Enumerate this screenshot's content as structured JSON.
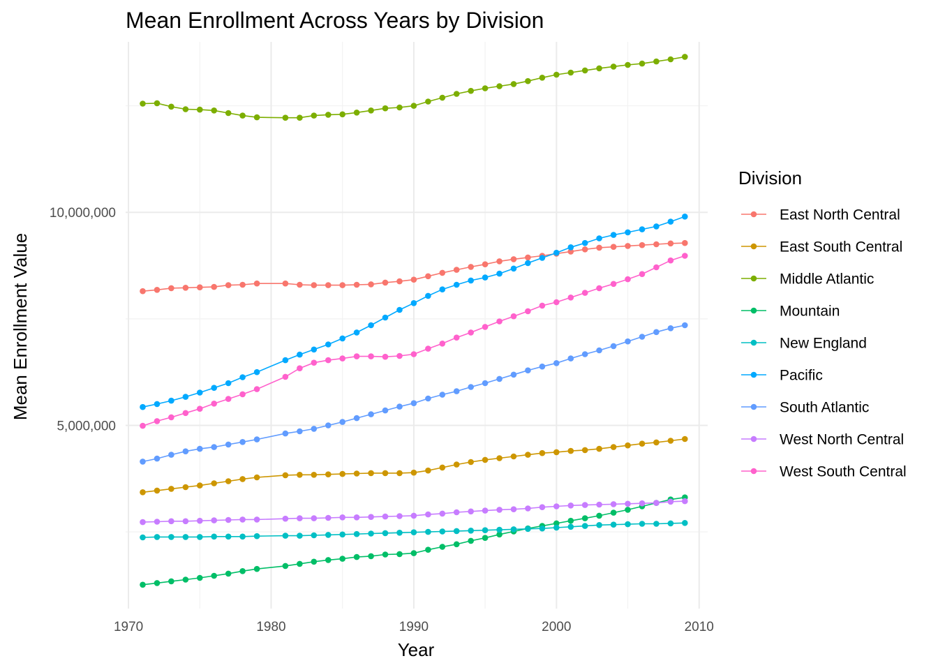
{
  "chart_data": {
    "type": "line",
    "title": "Mean Enrollment Across Years by Division",
    "xlabel": "Year",
    "ylabel": "Mean Enrollment Value",
    "xlim": [
      1969.8,
      2010.6
    ],
    "ylim": [
      700000,
      14000000
    ],
    "x_ticks": [
      1970,
      1980,
      1990,
      2000,
      2010
    ],
    "x_tick_labels": [
      "1970",
      "1980",
      "1990",
      "2000",
      "2010"
    ],
    "y_ticks": [
      5000000,
      10000000
    ],
    "y_tick_labels": [
      "5,000,000",
      "10,000,000"
    ],
    "y_minor_ticks": [
      2500000,
      7500000,
      12500000
    ],
    "grid": true,
    "legend_title": "Division",
    "legend_position": "right",
    "x": [
      1971,
      1972,
      1973,
      1974,
      1975,
      1976,
      1977,
      1978,
      1979,
      1981,
      1982,
      1983,
      1984,
      1985,
      1986,
      1987,
      1988,
      1989,
      1990,
      1991,
      1992,
      1993,
      1994,
      1995,
      1996,
      1997,
      1998,
      1999,
      2000,
      2001,
      2002,
      2003,
      2004,
      2005,
      2006,
      2007,
      2008,
      2009
    ],
    "series": [
      {
        "name": "East North Central",
        "color": "#F8766D",
        "values": [
          8150000,
          8180000,
          8220000,
          8230000,
          8240000,
          8250000,
          8290000,
          8300000,
          8330000,
          8330000,
          8300000,
          8290000,
          8290000,
          8290000,
          8300000,
          8310000,
          8350000,
          8380000,
          8420000,
          8500000,
          8580000,
          8650000,
          8720000,
          8780000,
          8850000,
          8900000,
          8940000,
          8980000,
          9030000,
          9080000,
          9130000,
          9170000,
          9190000,
          9210000,
          9230000,
          9250000,
          9270000,
          9280000
        ]
      },
      {
        "name": "East South Central",
        "color": "#CD9600",
        "values": [
          3430000,
          3470000,
          3510000,
          3550000,
          3590000,
          3640000,
          3690000,
          3740000,
          3780000,
          3830000,
          3840000,
          3840000,
          3850000,
          3860000,
          3870000,
          3880000,
          3880000,
          3880000,
          3890000,
          3940000,
          4010000,
          4080000,
          4140000,
          4190000,
          4230000,
          4270000,
          4310000,
          4350000,
          4370000,
          4400000,
          4420000,
          4450000,
          4490000,
          4530000,
          4570000,
          4600000,
          4640000,
          4680000
        ]
      },
      {
        "name": "Middle Atlantic",
        "color": "#7CAE00",
        "values": [
          12550000,
          12560000,
          12480000,
          12420000,
          12410000,
          12390000,
          12330000,
          12270000,
          12230000,
          12220000,
          12220000,
          12270000,
          12290000,
          12300000,
          12340000,
          12390000,
          12440000,
          12460000,
          12500000,
          12600000,
          12690000,
          12780000,
          12850000,
          12910000,
          12960000,
          13010000,
          13080000,
          13160000,
          13230000,
          13280000,
          13330000,
          13380000,
          13420000,
          13460000,
          13490000,
          13540000,
          13590000,
          13650000
        ]
      },
      {
        "name": "Mountain",
        "color": "#00BE67",
        "values": [
          1260000,
          1300000,
          1340000,
          1380000,
          1420000,
          1470000,
          1520000,
          1580000,
          1630000,
          1700000,
          1750000,
          1800000,
          1840000,
          1870000,
          1910000,
          1930000,
          1970000,
          1980000,
          2000000,
          2080000,
          2150000,
          2210000,
          2290000,
          2360000,
          2440000,
          2510000,
          2580000,
          2640000,
          2700000,
          2760000,
          2820000,
          2880000,
          2950000,
          3020000,
          3100000,
          3180000,
          3260000,
          3310000
        ]
      },
      {
        "name": "New England",
        "color": "#00BFC4",
        "values": [
          2370000,
          2380000,
          2380000,
          2380000,
          2380000,
          2390000,
          2390000,
          2390000,
          2400000,
          2410000,
          2410000,
          2420000,
          2430000,
          2440000,
          2450000,
          2460000,
          2470000,
          2480000,
          2490000,
          2500000,
          2510000,
          2520000,
          2530000,
          2540000,
          2550000,
          2560000,
          2570000,
          2580000,
          2600000,
          2620000,
          2640000,
          2660000,
          2670000,
          2680000,
          2690000,
          2690000,
          2700000,
          2710000
        ]
      },
      {
        "name": "Pacific",
        "color": "#00A9FF",
        "values": [
          5430000,
          5500000,
          5580000,
          5670000,
          5770000,
          5880000,
          5990000,
          6130000,
          6250000,
          6530000,
          6660000,
          6780000,
          6900000,
          7040000,
          7180000,
          7350000,
          7530000,
          7710000,
          7870000,
          8040000,
          8190000,
          8300000,
          8400000,
          8470000,
          8560000,
          8680000,
          8810000,
          8930000,
          9050000,
          9180000,
          9280000,
          9390000,
          9470000,
          9530000,
          9600000,
          9670000,
          9780000,
          9900000
        ]
      },
      {
        "name": "South Atlantic",
        "color": "#619CFF",
        "values": [
          4150000,
          4220000,
          4310000,
          4390000,
          4450000,
          4490000,
          4550000,
          4610000,
          4670000,
          4810000,
          4860000,
          4920000,
          5000000,
          5080000,
          5170000,
          5260000,
          5350000,
          5440000,
          5520000,
          5630000,
          5720000,
          5800000,
          5900000,
          5990000,
          6090000,
          6190000,
          6290000,
          6380000,
          6460000,
          6570000,
          6670000,
          6760000,
          6860000,
          6970000,
          7080000,
          7190000,
          7280000,
          7350000
        ]
      },
      {
        "name": "West North Central",
        "color": "#C77CFF",
        "values": [
          2730000,
          2740000,
          2750000,
          2750000,
          2760000,
          2770000,
          2780000,
          2790000,
          2790000,
          2810000,
          2820000,
          2820000,
          2830000,
          2840000,
          2840000,
          2850000,
          2860000,
          2870000,
          2880000,
          2910000,
          2930000,
          2960000,
          2980000,
          3000000,
          3020000,
          3030000,
          3050000,
          3080000,
          3100000,
          3120000,
          3130000,
          3140000,
          3150000,
          3160000,
          3170000,
          3180000,
          3210000,
          3220000
        ]
      },
      {
        "name": "West South Central",
        "color": "#FF61CC",
        "values": [
          4990000,
          5100000,
          5190000,
          5290000,
          5390000,
          5510000,
          5620000,
          5730000,
          5850000,
          6140000,
          6340000,
          6470000,
          6530000,
          6570000,
          6620000,
          6620000,
          6610000,
          6630000,
          6670000,
          6800000,
          6920000,
          7060000,
          7180000,
          7310000,
          7440000,
          7560000,
          7680000,
          7810000,
          7890000,
          8000000,
          8110000,
          8220000,
          8320000,
          8430000,
          8550000,
          8710000,
          8870000,
          8980000
        ]
      }
    ]
  }
}
